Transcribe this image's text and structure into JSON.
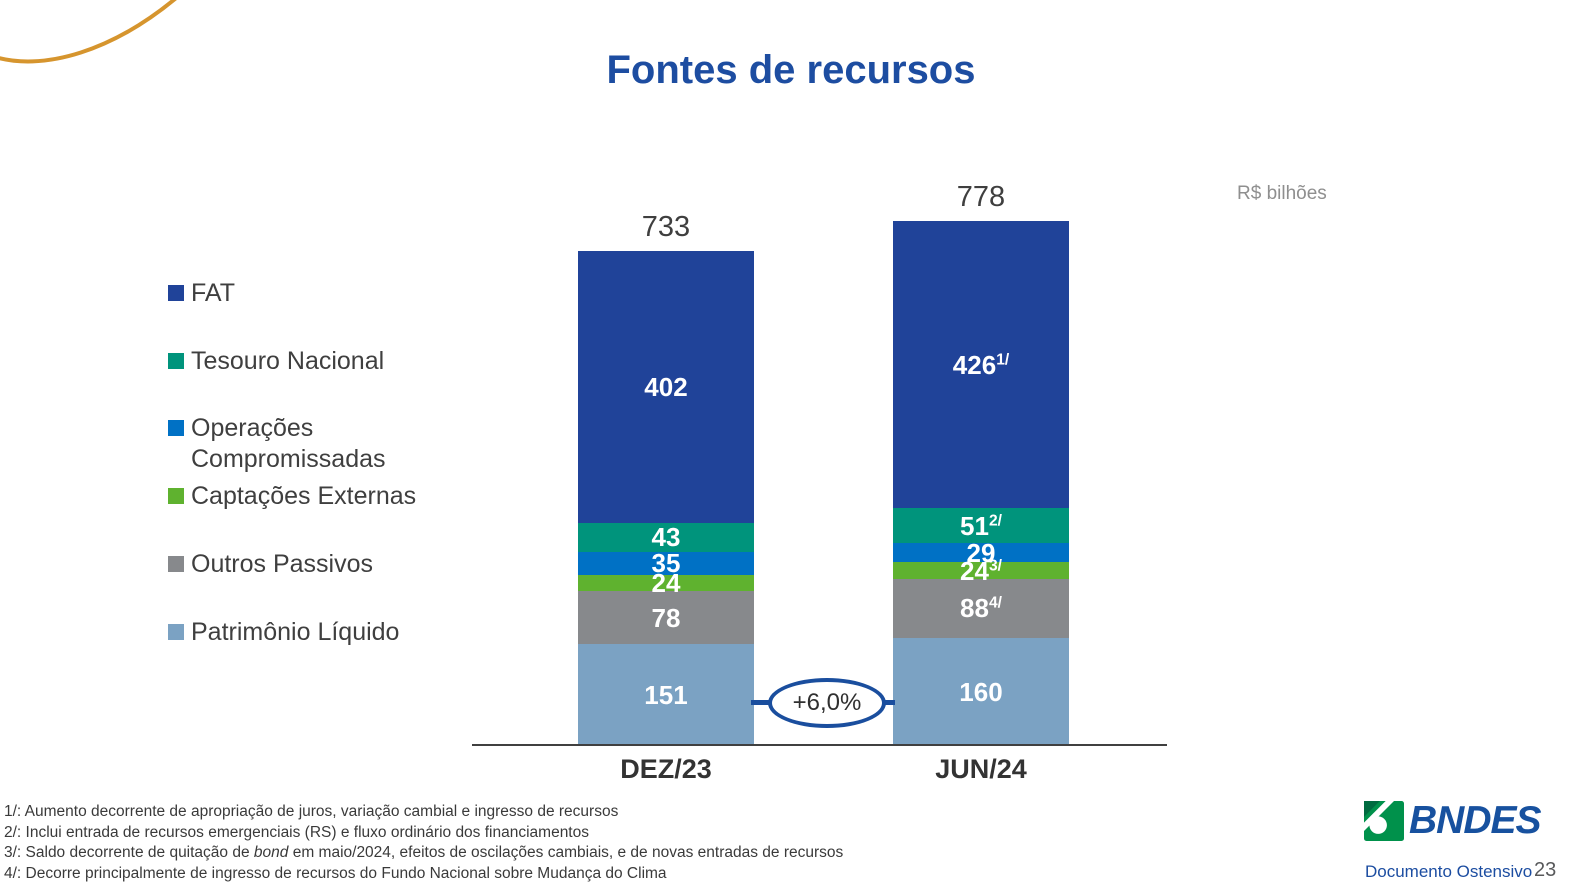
{
  "slide": {
    "title": "Fontes de recursos",
    "unit_label": "R$ bilhões"
  },
  "legend": [
    {
      "label": "FAT",
      "color": "#204399"
    },
    {
      "label": "Tesouro Nacional",
      "color": "#00947C"
    },
    {
      "label": "Operações Compromissadas",
      "color": "#0071C5"
    },
    {
      "label": "Captações Externas",
      "color": "#5FB22F"
    },
    {
      "label": "Outros Passivos",
      "color": "#87898C"
    },
    {
      "label": "Patrimônio Líquido",
      "color": "#7BA2C3"
    }
  ],
  "chart_data": {
    "type": "bar",
    "subtype": "stacked",
    "title": "Fontes de recursos",
    "unit": "R$ bilhões",
    "categories": [
      "DEZ/23",
      "JUN/24"
    ],
    "totals": [
      733,
      778
    ],
    "series": [
      {
        "name": "FAT",
        "color": "#204399",
        "values": [
          402,
          426
        ],
        "sups": [
          "",
          "1/"
        ]
      },
      {
        "name": "Tesouro Nacional",
        "color": "#00947C",
        "values": [
          43,
          51
        ],
        "sups": [
          "",
          "2/"
        ]
      },
      {
        "name": "Operações Compromissadas",
        "color": "#0071C5",
        "values": [
          35,
          29
        ],
        "sups": [
          "",
          ""
        ]
      },
      {
        "name": "Captações Externas",
        "color": "#5FB22F",
        "values": [
          24,
          24
        ],
        "sups": [
          "",
          "3/"
        ]
      },
      {
        "name": "Outros Passivos",
        "color": "#87898C",
        "values": [
          78,
          88
        ],
        "sups": [
          "",
          "4/"
        ]
      },
      {
        "name": "Patrimônio Líquido",
        "color": "#7BA2C3",
        "values": [
          151,
          160
        ],
        "sups": [
          "",
          ""
        ]
      }
    ],
    "growth_label": "+6,0%",
    "legend_position": "left",
    "grid": false,
    "value_axis_visible": false
  },
  "footnotes": [
    {
      "pre": "1/: Aumento decorrente de apropriação de juros, variação cambial e ingresso de recursos",
      "italic": "",
      "post": ""
    },
    {
      "pre": "2/: Inclui entrada de recursos emergenciais (RS) e fluxo ordinário dos financiamentos",
      "italic": "",
      "post": ""
    },
    {
      "pre": "3/: Saldo decorrente de quitação de ",
      "italic": "bond",
      "post": " em maio/2024, efeitos de oscilações cambiais, e de novas entradas de recursos"
    },
    {
      "pre": "4/: Decorre principalmente de ingresso de recursos do Fundo Nacional sobre Mudança do Clima",
      "italic": "",
      "post": ""
    }
  ],
  "footer": {
    "logo_text": "BNDES",
    "classification": "Documento Ostensivo",
    "page": "23"
  }
}
